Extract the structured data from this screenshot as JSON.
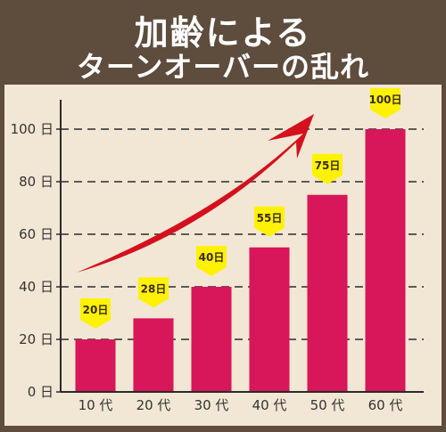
{
  "title": {
    "line1": "加齢による",
    "line2": "ターンオーバーの乱れ"
  },
  "colors": {
    "bar": "#d8165a",
    "tag": "#fff200",
    "arrow": "#d5101e",
    "background": "#5e4c3c",
    "panel": "#f2e7d4"
  },
  "chart_data": {
    "type": "bar",
    "categories": [
      "10 代",
      "20 代",
      "30 代",
      "40 代",
      "50 代",
      "60 代"
    ],
    "values": [
      20,
      28,
      40,
      55,
      75,
      100
    ],
    "value_labels": [
      "20日",
      "28日",
      "40日",
      "55日",
      "75日",
      "100日"
    ],
    "y_ticks": [
      0,
      20,
      40,
      60,
      80,
      100
    ],
    "y_tick_labels": [
      "0 日",
      "20 日",
      "40 日",
      "60 日",
      "80 日",
      "100 日"
    ],
    "ylim": [
      0,
      100
    ],
    "grid": "dashed horizontal",
    "annotation": "upward-arrow"
  }
}
